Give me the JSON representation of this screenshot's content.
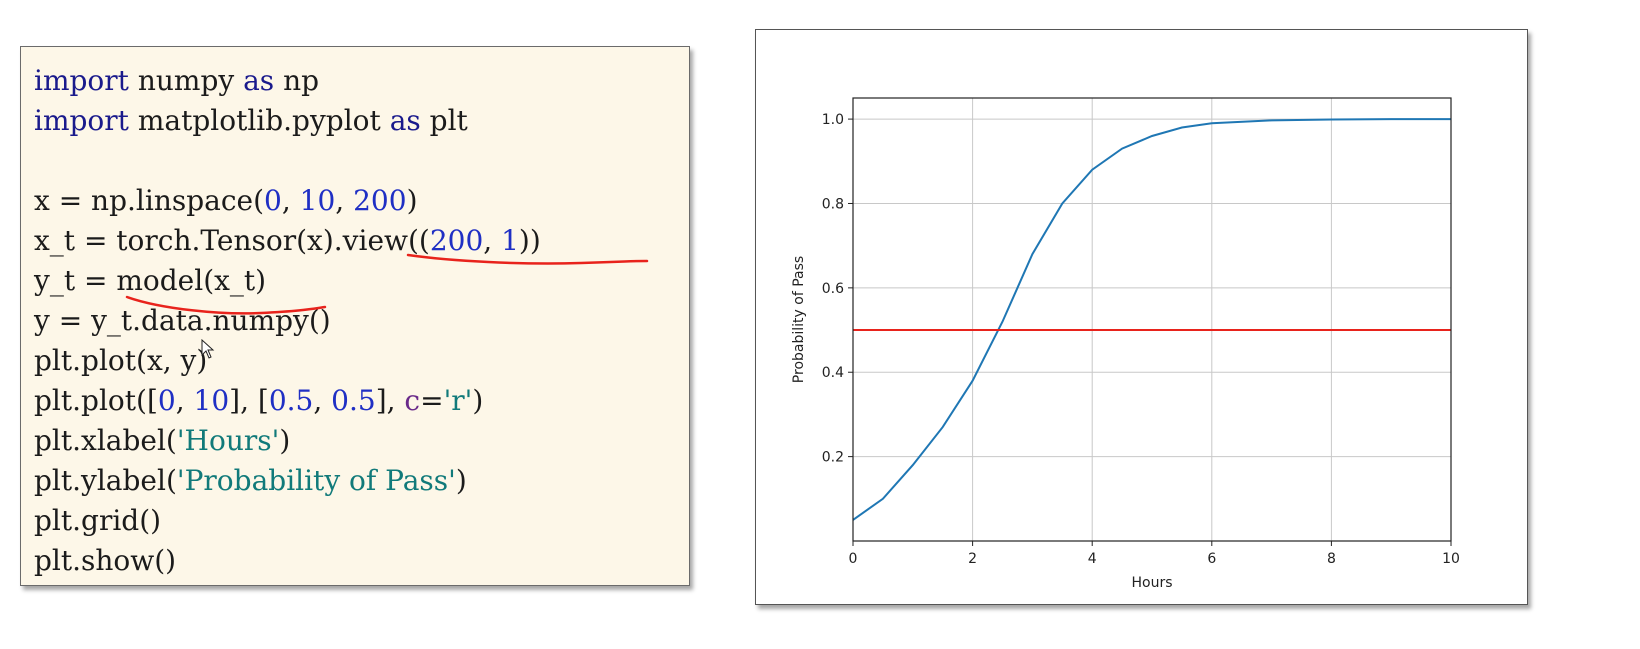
{
  "code": {
    "lines": [
      [
        {
          "t": "import",
          "c": "kw"
        },
        {
          "t": " numpy "
        },
        {
          "t": "as",
          "c": "kw"
        },
        {
          "t": " np"
        }
      ],
      [
        {
          "t": "import",
          "c": "kw"
        },
        {
          "t": " matplotlib.pyplot "
        },
        {
          "t": "as",
          "c": "kw"
        },
        {
          "t": " plt"
        }
      ],
      [],
      [
        {
          "t": "x = np.linspace("
        },
        {
          "t": "0",
          "c": "num"
        },
        {
          "t": ", "
        },
        {
          "t": "10",
          "c": "num"
        },
        {
          "t": ", "
        },
        {
          "t": "200",
          "c": "num"
        },
        {
          "t": ")"
        }
      ],
      [
        {
          "t": "x_t = torch.Tensor(x).view(("
        },
        {
          "t": "200",
          "c": "num"
        },
        {
          "t": ", "
        },
        {
          "t": "1",
          "c": "num"
        },
        {
          "t": "))"
        }
      ],
      [
        {
          "t": "y_t = model(x_t)"
        }
      ],
      [
        {
          "t": "y = y_t.data.numpy()"
        }
      ],
      [
        {
          "t": "plt.plot(x, y)"
        }
      ],
      [
        {
          "t": "plt.plot(["
        },
        {
          "t": "0",
          "c": "num"
        },
        {
          "t": ", "
        },
        {
          "t": "10",
          "c": "num"
        },
        {
          "t": "], ["
        },
        {
          "t": "0.5",
          "c": "num"
        },
        {
          "t": ", "
        },
        {
          "t": "0.5",
          "c": "num"
        },
        {
          "t": "], "
        },
        {
          "t": "c",
          "c": "kwarg"
        },
        {
          "t": "="
        },
        {
          "t": "'r'",
          "c": "str"
        },
        {
          "t": ")"
        }
      ],
      [
        {
          "t": "plt.xlabel("
        },
        {
          "t": "'Hours'",
          "c": "str"
        },
        {
          "t": ")"
        }
      ],
      [
        {
          "t": "plt.ylabel("
        },
        {
          "t": "'Probability of Pass'",
          "c": "str"
        },
        {
          "t": ")"
        }
      ],
      [
        {
          "t": "plt.grid()"
        }
      ],
      [
        {
          "t": "plt.show()"
        }
      ]
    ],
    "annotation_color": "#e8231c"
  },
  "chart_data": {
    "type": "line",
    "xlabel": "Hours",
    "ylabel": "Probability of Pass",
    "xlim": [
      0,
      10
    ],
    "ylim": [
      0,
      1.05
    ],
    "xticks": [
      0,
      2,
      4,
      6,
      8,
      10
    ],
    "yticks": [
      0.2,
      0.4,
      0.6,
      0.8,
      1.0
    ],
    "grid": true,
    "series": [
      {
        "color": "#1f77b4",
        "x": [
          0,
          0.5,
          1,
          1.5,
          2,
          2.5,
          3,
          3.5,
          4,
          4.5,
          5,
          5.5,
          6,
          7,
          8,
          9,
          10
        ],
        "y": [
          0.05,
          0.1,
          0.18,
          0.27,
          0.38,
          0.52,
          0.68,
          0.8,
          0.88,
          0.93,
          0.96,
          0.98,
          0.99,
          0.997,
          0.999,
          1.0,
          1.0
        ]
      },
      {
        "color": "#e8231c",
        "x": [
          0,
          10
        ],
        "y": [
          0.5,
          0.5
        ]
      }
    ]
  }
}
